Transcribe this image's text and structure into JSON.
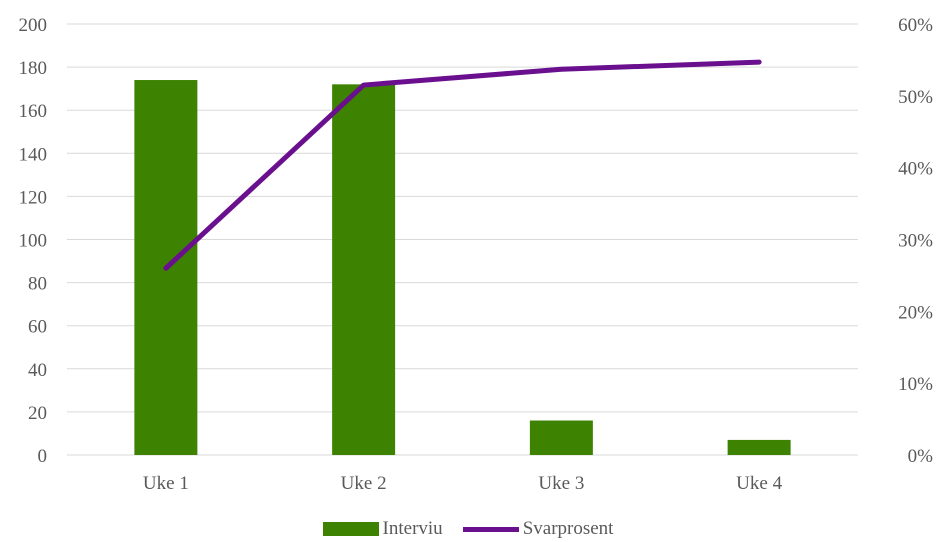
{
  "chart_data": {
    "type": "bar+line",
    "categories": [
      "Uke 1",
      "Uke 2",
      "Uke 3",
      "Uke 4"
    ],
    "series": [
      {
        "name": "Interviu",
        "type": "bar",
        "axis": "left",
        "color": "#3E8201",
        "values": [
          174,
          172,
          16,
          7
        ]
      },
      {
        "name": "Svarprosent",
        "type": "line",
        "axis": "right",
        "color": "#6A0F8E",
        "values": [
          0.26,
          0.515,
          0.537,
          0.547
        ]
      }
    ],
    "y_left": {
      "min": 0,
      "max": 200,
      "step": 20,
      "ticks": [
        "0",
        "20",
        "40",
        "60",
        "80",
        "100",
        "120",
        "140",
        "160",
        "180",
        "200"
      ]
    },
    "y_right": {
      "min": 0,
      "max": 0.6,
      "step": 0.1,
      "ticks": [
        "0%",
        "10%",
        "20%",
        "30%",
        "40%",
        "50%",
        "60%"
      ]
    },
    "grid": true,
    "legend_position": "bottom",
    "title": "",
    "xlabel": "",
    "ylabel": ""
  },
  "legend": {
    "bar_label": "Interviu",
    "line_label": "Svarprosent"
  }
}
